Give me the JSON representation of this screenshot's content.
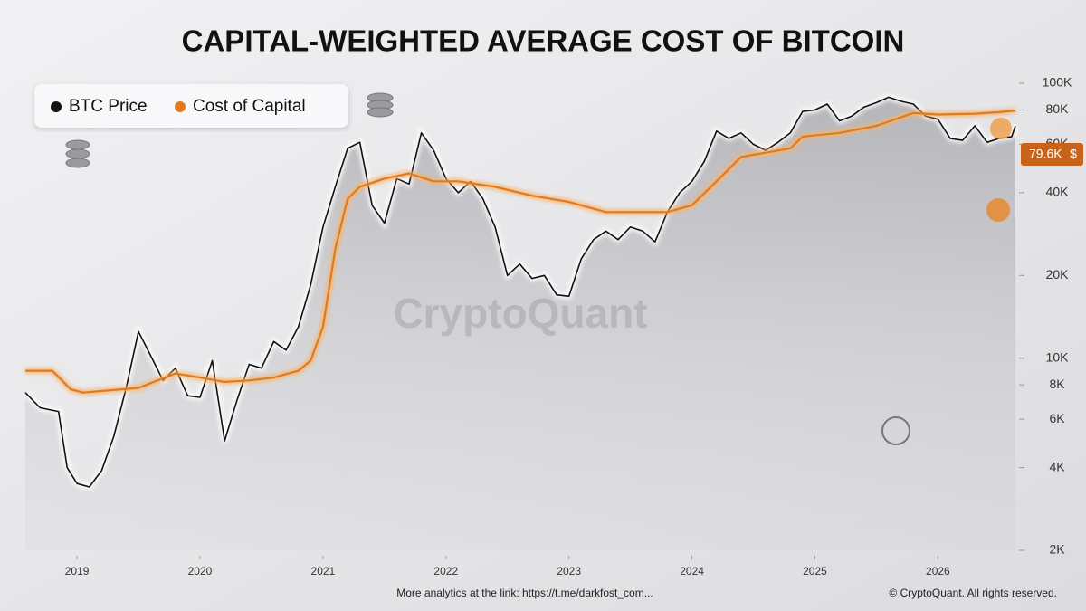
{
  "chart_data": {
    "type": "line",
    "title": "CAPITAL-WEIGHTED AVERAGE COST OF BITCOIN",
    "watermark": "CryptoQuant",
    "footer_left": "More analytics at the link: https://t.me/darkfost_com...",
    "footer_right": "© CryptoQuant. All rights reserved.",
    "log_scale": true,
    "legend": "top-left",
    "xlim": [
      2018.58,
      2026.63
    ],
    "xticks": [
      2019,
      2020,
      2021,
      2022,
      2023,
      2024,
      2025,
      2026
    ],
    "ylim": [
      2000,
      100000
    ],
    "yticks": [
      {
        "value": 100000,
        "label": "100K"
      },
      {
        "value": 80000,
        "label": "80K"
      },
      {
        "value": 60000,
        "label": "60K"
      },
      {
        "value": 40000,
        "label": "40K"
      },
      {
        "value": 20000,
        "label": "20K"
      },
      {
        "value": 10000,
        "label": "10K"
      },
      {
        "value": 8000,
        "label": "8K"
      },
      {
        "value": 6000,
        "label": "6K"
      },
      {
        "value": 4000,
        "label": "4K"
      },
      {
        "value": 2000,
        "label": "2K"
      }
    ],
    "series": [
      {
        "name": "BTC Price",
        "color": "#111111",
        "x": [
          2018.58,
          2018.7,
          2018.85,
          2018.92,
          2019.0,
          2019.1,
          2019.2,
          2019.3,
          2019.4,
          2019.5,
          2019.6,
          2019.7,
          2019.8,
          2019.9,
          2020.0,
          2020.1,
          2020.2,
          2020.3,
          2020.4,
          2020.5,
          2020.6,
          2020.7,
          2020.8,
          2020.9,
          2021.0,
          2021.1,
          2021.2,
          2021.3,
          2021.4,
          2021.5,
          2021.6,
          2021.7,
          2021.8,
          2021.9,
          2022.0,
          2022.1,
          2022.2,
          2022.3,
          2022.4,
          2022.5,
          2022.6,
          2022.7,
          2022.8,
          2022.9,
          2023.0,
          2023.1,
          2023.2,
          2023.3,
          2023.4,
          2023.5,
          2023.6,
          2023.7,
          2023.8,
          2023.9,
          2024.0,
          2024.1,
          2024.2,
          2024.3,
          2024.4,
          2024.5,
          2024.6,
          2024.7,
          2024.8,
          2024.9,
          2025.0,
          2025.1,
          2025.2,
          2025.3,
          2025.4,
          2025.5,
          2025.6,
          2025.7,
          2025.8,
          2025.9,
          2026.0,
          2026.1,
          2026.2,
          2026.3,
          2026.4,
          2026.5,
          2026.6,
          2026.63
        ],
        "values": [
          7500,
          6600,
          6400,
          4000,
          3500,
          3400,
          3900,
          5200,
          7800,
          12500,
          10200,
          8300,
          9200,
          7300,
          7200,
          9800,
          5000,
          7000,
          9500,
          9200,
          11500,
          10700,
          13000,
          18500,
          30000,
          42000,
          58000,
          61000,
          36000,
          31000,
          45000,
          43000,
          66000,
          57000,
          45000,
          40000,
          44000,
          38000,
          30000,
          20000,
          22000,
          19500,
          20000,
          17000,
          16800,
          23000,
          27000,
          29000,
          27000,
          30000,
          29000,
          26500,
          34000,
          40000,
          44000,
          52000,
          67000,
          63000,
          66000,
          60000,
          57000,
          61000,
          66000,
          79000,
          80000,
          84000,
          73000,
          76000,
          82000,
          85000,
          89000,
          86000,
          84000,
          76000,
          74000,
          63000,
          62000,
          70000,
          61000,
          63000,
          64000,
          70000
        ]
      },
      {
        "name": "Cost of Capital",
        "color": "#e07a1f",
        "x": [
          2018.58,
          2018.8,
          2018.95,
          2019.05,
          2019.5,
          2019.8,
          2020.0,
          2020.2,
          2020.4,
          2020.6,
          2020.8,
          2020.9,
          2021.0,
          2021.1,
          2021.2,
          2021.3,
          2021.5,
          2021.7,
          2021.9,
          2022.1,
          2022.4,
          2022.7,
          2023.0,
          2023.3,
          2023.8,
          2024.0,
          2024.2,
          2024.4,
          2024.8,
          2024.9,
          2025.2,
          2025.5,
          2025.8,
          2026.0,
          2026.3,
          2026.5,
          2026.63
        ],
        "values": [
          9000,
          9000,
          7700,
          7500,
          7800,
          8800,
          8500,
          8200,
          8300,
          8500,
          9000,
          9800,
          13000,
          25000,
          38000,
          42000,
          45000,
          47000,
          44000,
          44000,
          42000,
          39000,
          37000,
          34000,
          34000,
          36000,
          44000,
          54000,
          58000,
          64000,
          66000,
          70000,
          78000,
          77000,
          77500,
          78500,
          79600
        ],
        "value_labels": [
          null,
          null,
          null,
          null,
          null,
          null,
          null,
          null,
          null,
          null,
          null,
          null,
          null,
          null,
          null,
          null,
          null,
          null,
          null,
          null,
          null,
          null,
          null,
          null,
          null,
          null,
          null,
          null,
          null,
          null,
          null,
          null,
          null,
          null,
          null,
          null,
          "79.6K"
        ]
      }
    ]
  }
}
